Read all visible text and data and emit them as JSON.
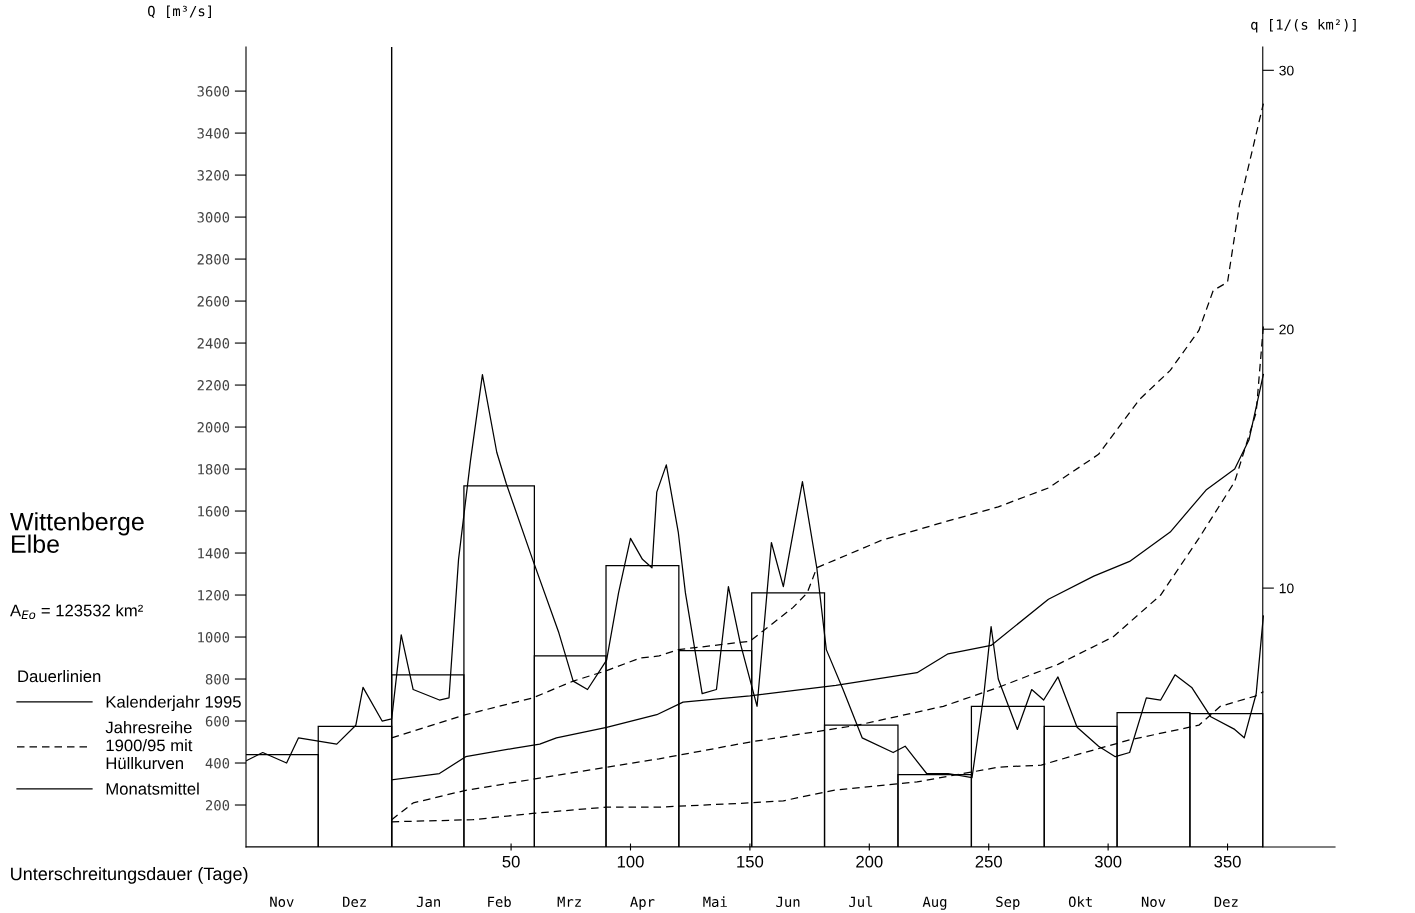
{
  "chart_data": {
    "type": "line",
    "title": "Wittenberge\nElbe",
    "xlabel": "Unterschreitungsdauer (Tage)",
    "ylabel": "Q [m³/s]",
    "y2label": "q [1/(s km²)]",
    "legend_title": "Dauerlinien",
    "annotations": [
      "A$_{Eo}$ = 123532 km²",
      "Nov",
      "Dez",
      "Jan",
      "Feb",
      "Mrz",
      "Apr",
      "Mai",
      "Jun",
      "Jul",
      "Aug",
      "Sep",
      "Okt",
      "Nov",
      "Dez"
    ],
    "legend": "left",
    "grid": false,
    "xlim": [
      -61,
      395
    ],
    "xticks": [
      50,
      100,
      150,
      200,
      250,
      300,
      350
    ],
    "ylim": [
      0,
      3810
    ],
    "yticks": [
      200,
      400,
      600,
      800,
      1000,
      1200,
      1400,
      1600,
      1800,
      2000,
      2200,
      2400,
      2600,
      2800,
      3000,
      3200,
      3400,
      3600
    ],
    "y2lim": [
      0,
      30.9
    ],
    "y2ticks": [
      10,
      20,
      30
    ],
    "ref_lines": [
      {
        "axis": "x",
        "value": 0,
        "color": "#000000"
      }
    ],
    "series": [
      {
        "color": "#000000",
        "line_style": "solid",
        "x": [
          -61,
          -54,
          -44,
          -39,
          -23,
          -15,
          -12,
          -4,
          0,
          4,
          9,
          20,
          24,
          28,
          33,
          38,
          44,
          48,
          59,
          70,
          76,
          82,
          90,
          95,
          100,
          105,
          109,
          111,
          115,
          120,
          123,
          130,
          136,
          141,
          146,
          153,
          159,
          164,
          172,
          178,
          182,
          189,
          197,
          210,
          215,
          224,
          233,
          243,
          248,
          251,
          254,
          262,
          268,
          273,
          279,
          287,
          296,
          303,
          309,
          316,
          322,
          328,
          335,
          343,
          353,
          357,
          362,
          365
        ],
        "values": [
          410,
          450,
          400,
          520,
          490,
          580,
          760,
          600,
          610,
          1010,
          750,
          700,
          710,
          1370,
          1840,
          2250,
          1880,
          1730,
          1370,
          1020,
          790,
          750,
          890,
          1210,
          1470,
          1370,
          1330,
          1690,
          1820,
          1500,
          1210,
          730,
          750,
          1240,
          970,
          670,
          1450,
          1240,
          1740,
          1330,
          940,
          750,
          520,
          450,
          480,
          350,
          350,
          330,
          730,
          1050,
          800,
          560,
          750,
          700,
          810,
          570,
          480,
          430,
          450,
          710,
          700,
          820,
          760,
          620,
          560,
          520,
          730,
          1100
        ]
      },
      {
        "name": "Kalenderjahr 1995",
        "color": "#000000",
        "line_style": "solid",
        "x": [
          0,
          20,
          31,
          51,
          62,
          69,
          90,
          111,
          122,
          150,
          186,
          220,
          233,
          251,
          275,
          294,
          309,
          326,
          341,
          353,
          359,
          365
        ],
        "values": [
          320,
          350,
          430,
          470,
          490,
          520,
          570,
          630,
          690,
          720,
          770,
          830,
          920,
          960,
          1180,
          1290,
          1360,
          1500,
          1700,
          1800,
          1940,
          2250
        ]
      },
      {
        "name": "Jahresreihe\n1900/95 mit\nHüllkurven",
        "color": "#000000",
        "line_style": "dashed",
        "x": [
          0,
          31,
          59,
          76,
          90,
          104,
          112,
          120,
          150,
          168,
          174,
          178,
          205,
          229,
          254,
          275,
          296,
          313,
          326,
          338,
          344,
          350,
          355,
          360,
          365
        ],
        "values": [
          520,
          630,
          710,
          790,
          840,
          900,
          910,
          940,
          980,
          1140,
          1210,
          1330,
          1460,
          1540,
          1620,
          1710,
          1870,
          2130,
          2270,
          2460,
          2650,
          2690,
          3060,
          3300,
          3540
        ]
      },
      {
        "color": "#000000",
        "line_style": "dashed",
        "x": [
          0,
          9,
          31,
          90,
          112,
          150,
          195,
          231,
          254,
          279,
          302,
          322,
          338,
          353,
          362,
          365
        ],
        "values": [
          130,
          210,
          270,
          380,
          420,
          500,
          580,
          670,
          760,
          870,
          1000,
          1200,
          1470,
          1740,
          2070,
          2480
        ]
      },
      {
        "color": "#000000",
        "line_style": "dashed",
        "x": [
          0,
          34,
          59,
          90,
          112,
          150,
          164,
          185,
          220,
          254,
          272,
          287,
          309,
          338,
          347,
          362,
          365
        ],
        "values": [
          120,
          130,
          160,
          190,
          190,
          210,
          220,
          270,
          310,
          380,
          390,
          440,
          510,
          580,
          670,
          720,
          740
        ]
      },
      {
        "type": "bar",
        "name": "Monatsmittel",
        "color": "#000000",
        "x": [
          -46,
          -15.5,
          15.5,
          45,
          74.5,
          105,
          135.5,
          166,
          196.5,
          227.5,
          258,
          288.5,
          319,
          349.5
        ],
        "values": [
          440,
          575,
          820,
          1720,
          910,
          1340,
          935,
          1210,
          580,
          345,
          670,
          575,
          640,
          635
        ]
      }
    ]
  }
}
